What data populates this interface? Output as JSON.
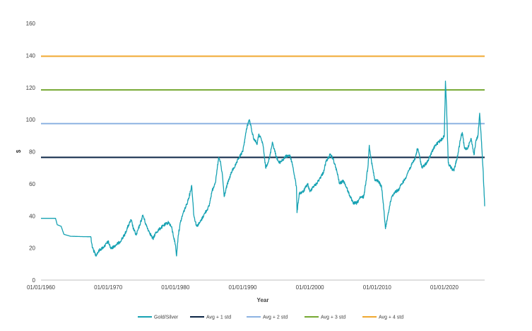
{
  "chart_data": {
    "type": "line",
    "title": "",
    "xlabel": "Year",
    "ylabel": "$",
    "ylim": [
      0,
      160
    ],
    "xlim": [
      "1960-01-01",
      "2025-12-31"
    ],
    "grid": false,
    "legend_position": "bottom",
    "y_ticks": [
      "0",
      "20",
      "40",
      "60",
      "80",
      "100",
      "120",
      "140",
      "160"
    ],
    "x_ticks": [
      {
        "date": "1960-01-01",
        "label": "01/01/1960"
      },
      {
        "date": "1970-01-01",
        "label": "01/01/1970"
      },
      {
        "date": "1980-01-01",
        "label": "01/01/1980"
      },
      {
        "date": "1990-01-01",
        "label": "01/01/1990"
      },
      {
        "date": "2000-01-01",
        "label": "01/01/2000"
      },
      {
        "date": "2010-01-01",
        "label": "01/01/2010"
      },
      {
        "date": "2020-01-01",
        "label": "01/01/2020"
      }
    ],
    "series": [
      {
        "name": "Gold/Silver",
        "color": "#17A2B3",
        "points": [
          [
            "1960-01-01",
            38.5
          ],
          [
            "1962-03-01",
            38.5
          ],
          [
            "1962-06-01",
            34.5
          ],
          [
            "1963-01-01",
            33.5
          ],
          [
            "1963-06-01",
            28.5
          ],
          [
            "1964-06-01",
            27.3
          ],
          [
            "1966-01-01",
            27.1
          ],
          [
            "1967-06-01",
            27.0
          ],
          [
            "1967-09-01",
            20.0
          ],
          [
            "1968-03-01",
            15.5
          ],
          [
            "1968-09-01",
            18.5
          ],
          [
            "1969-06-01",
            21.0
          ],
          [
            "1970-01-01",
            24.0
          ],
          [
            "1970-06-01",
            19.5
          ],
          [
            "1971-01-01",
            21.5
          ],
          [
            "1971-09-01",
            23.5
          ],
          [
            "1972-06-01",
            28.0
          ],
          [
            "1973-01-01",
            34.0
          ],
          [
            "1973-06-01",
            37.5
          ],
          [
            "1973-10-01",
            32.0
          ],
          [
            "1974-03-01",
            28.0
          ],
          [
            "1974-09-01",
            34.0
          ],
          [
            "1975-03-01",
            40.5
          ],
          [
            "1975-09-01",
            34.0
          ],
          [
            "1976-01-01",
            31.0
          ],
          [
            "1976-09-01",
            25.5
          ],
          [
            "1977-01-01",
            29.0
          ],
          [
            "1977-09-01",
            32.0
          ],
          [
            "1978-06-01",
            34.5
          ],
          [
            "1979-01-01",
            36.0
          ],
          [
            "1979-06-01",
            33.0
          ],
          [
            "1980-01-01",
            22.0
          ],
          [
            "1980-03-01",
            15.0
          ],
          [
            "1980-06-01",
            28.0
          ],
          [
            "1980-10-01",
            36.0
          ],
          [
            "1981-03-01",
            42.0
          ],
          [
            "1981-09-01",
            47.0
          ],
          [
            "1982-03-01",
            54.0
          ],
          [
            "1982-06-01",
            59.0
          ],
          [
            "1982-10-01",
            40.0
          ],
          [
            "1983-03-01",
            33.5
          ],
          [
            "1983-09-01",
            36.0
          ],
          [
            "1984-06-01",
            42.0
          ],
          [
            "1985-01-01",
            46.0
          ],
          [
            "1985-06-01",
            55.0
          ],
          [
            "1986-01-01",
            62.0
          ],
          [
            "1986-06-01",
            76.0
          ],
          [
            "1986-09-01",
            74.0
          ],
          [
            "1987-01-01",
            65.0
          ],
          [
            "1987-04-01",
            52.0
          ],
          [
            "1987-09-01",
            59.0
          ],
          [
            "1988-01-01",
            63.0
          ],
          [
            "1988-06-01",
            68.0
          ],
          [
            "1989-01-01",
            72.0
          ],
          [
            "1989-06-01",
            76.0
          ],
          [
            "1990-01-01",
            80.0
          ],
          [
            "1990-06-01",
            90.0
          ],
          [
            "1990-09-01",
            96.0
          ],
          [
            "1991-01-01",
            100.0
          ],
          [
            "1991-06-01",
            92.0
          ],
          [
            "1991-09-01",
            88.0
          ],
          [
            "1992-03-01",
            85.0
          ],
          [
            "1992-06-01",
            91.0
          ],
          [
            "1993-01-01",
            85.0
          ],
          [
            "1993-06-01",
            70.0
          ],
          [
            "1994-01-01",
            76.0
          ],
          [
            "1994-06-01",
            86.0
          ],
          [
            "1995-01-01",
            77.0
          ],
          [
            "1995-06-01",
            73.0
          ],
          [
            "1996-01-01",
            75.0
          ],
          [
            "1996-06-01",
            77.0
          ],
          [
            "1997-01-01",
            78.0
          ],
          [
            "1997-06-01",
            72.0
          ],
          [
            "1998-01-01",
            58.0
          ],
          [
            "1998-02-01",
            42.0
          ],
          [
            "1998-06-01",
            54.0
          ],
          [
            "1999-01-01",
            55.0
          ],
          [
            "1999-09-01",
            60.0
          ],
          [
            "2000-01-01",
            55.0
          ],
          [
            "2000-06-01",
            58.0
          ],
          [
            "2001-01-01",
            60.0
          ],
          [
            "2001-06-01",
            63.0
          ],
          [
            "2002-01-01",
            67.0
          ],
          [
            "2002-06-01",
            74.0
          ],
          [
            "2003-01-01",
            78.0
          ],
          [
            "2003-06-01",
            76.0
          ],
          [
            "2004-01-01",
            68.0
          ],
          [
            "2004-06-01",
            60.0
          ],
          [
            "2005-01-01",
            62.0
          ],
          [
            "2005-06-01",
            58.0
          ],
          [
            "2006-01-01",
            52.0
          ],
          [
            "2006-06-01",
            48.0
          ],
          [
            "2007-01-01",
            48.0
          ],
          [
            "2007-06-01",
            51.0
          ],
          [
            "2008-01-01",
            52.0
          ],
          [
            "2008-03-01",
            56.0
          ],
          [
            "2008-09-01",
            72.0
          ],
          [
            "2008-11-01",
            84.0
          ],
          [
            "2009-03-01",
            74.0
          ],
          [
            "2009-09-01",
            62.0
          ],
          [
            "2010-03-01",
            62.0
          ],
          [
            "2010-09-01",
            58.0
          ],
          [
            "2011-01-01",
            44.0
          ],
          [
            "2011-04-01",
            32.0
          ],
          [
            "2011-09-01",
            42.0
          ],
          [
            "2012-03-01",
            52.0
          ],
          [
            "2012-09-01",
            55.0
          ],
          [
            "2013-03-01",
            56.0
          ],
          [
            "2013-09-01",
            60.0
          ],
          [
            "2014-03-01",
            63.0
          ],
          [
            "2014-09-01",
            68.0
          ],
          [
            "2015-03-01",
            72.0
          ],
          [
            "2015-09-01",
            76.0
          ],
          [
            "2016-01-01",
            82.0
          ],
          [
            "2016-03-01",
            80.0
          ],
          [
            "2016-09-01",
            70.0
          ],
          [
            "2017-03-01",
            72.0
          ],
          [
            "2017-09-01",
            75.0
          ],
          [
            "2018-03-01",
            80.0
          ],
          [
            "2018-09-01",
            84.0
          ],
          [
            "2019-03-01",
            86.0
          ],
          [
            "2019-09-01",
            88.0
          ],
          [
            "2020-01-01",
            90.0
          ],
          [
            "2020-03-01",
            124.0
          ],
          [
            "2020-05-01",
            108.0
          ],
          [
            "2020-08-01",
            73.0
          ],
          [
            "2021-01-01",
            70.0
          ],
          [
            "2021-06-01",
            68.0
          ],
          [
            "2022-01-01",
            78.0
          ],
          [
            "2022-06-01",
            88.0
          ],
          [
            "2022-09-01",
            92.0
          ],
          [
            "2023-01-01",
            82.0
          ],
          [
            "2023-06-01",
            82.0
          ],
          [
            "2024-01-01",
            88.0
          ],
          [
            "2024-06-01",
            78.0
          ],
          [
            "2024-09-01",
            86.0
          ],
          [
            "2025-01-01",
            90.0
          ],
          [
            "2025-04-01",
            104.0
          ],
          [
            "2025-07-01",
            88.0
          ],
          [
            "2025-10-01",
            70.0
          ],
          [
            "2025-12-31",
            46.0
          ]
        ]
      },
      {
        "name": "Avg + 1 std",
        "color": "#0B2545",
        "value": 76.5
      },
      {
        "name": "Avg + 2 std",
        "color": "#8DB3E2",
        "value": 97.5
      },
      {
        "name": "Avg + 3 std",
        "color": "#76A832",
        "value": 118.5
      },
      {
        "name": "Avg + 4 std",
        "color": "#F0A830",
        "value": 139.5
      }
    ]
  }
}
